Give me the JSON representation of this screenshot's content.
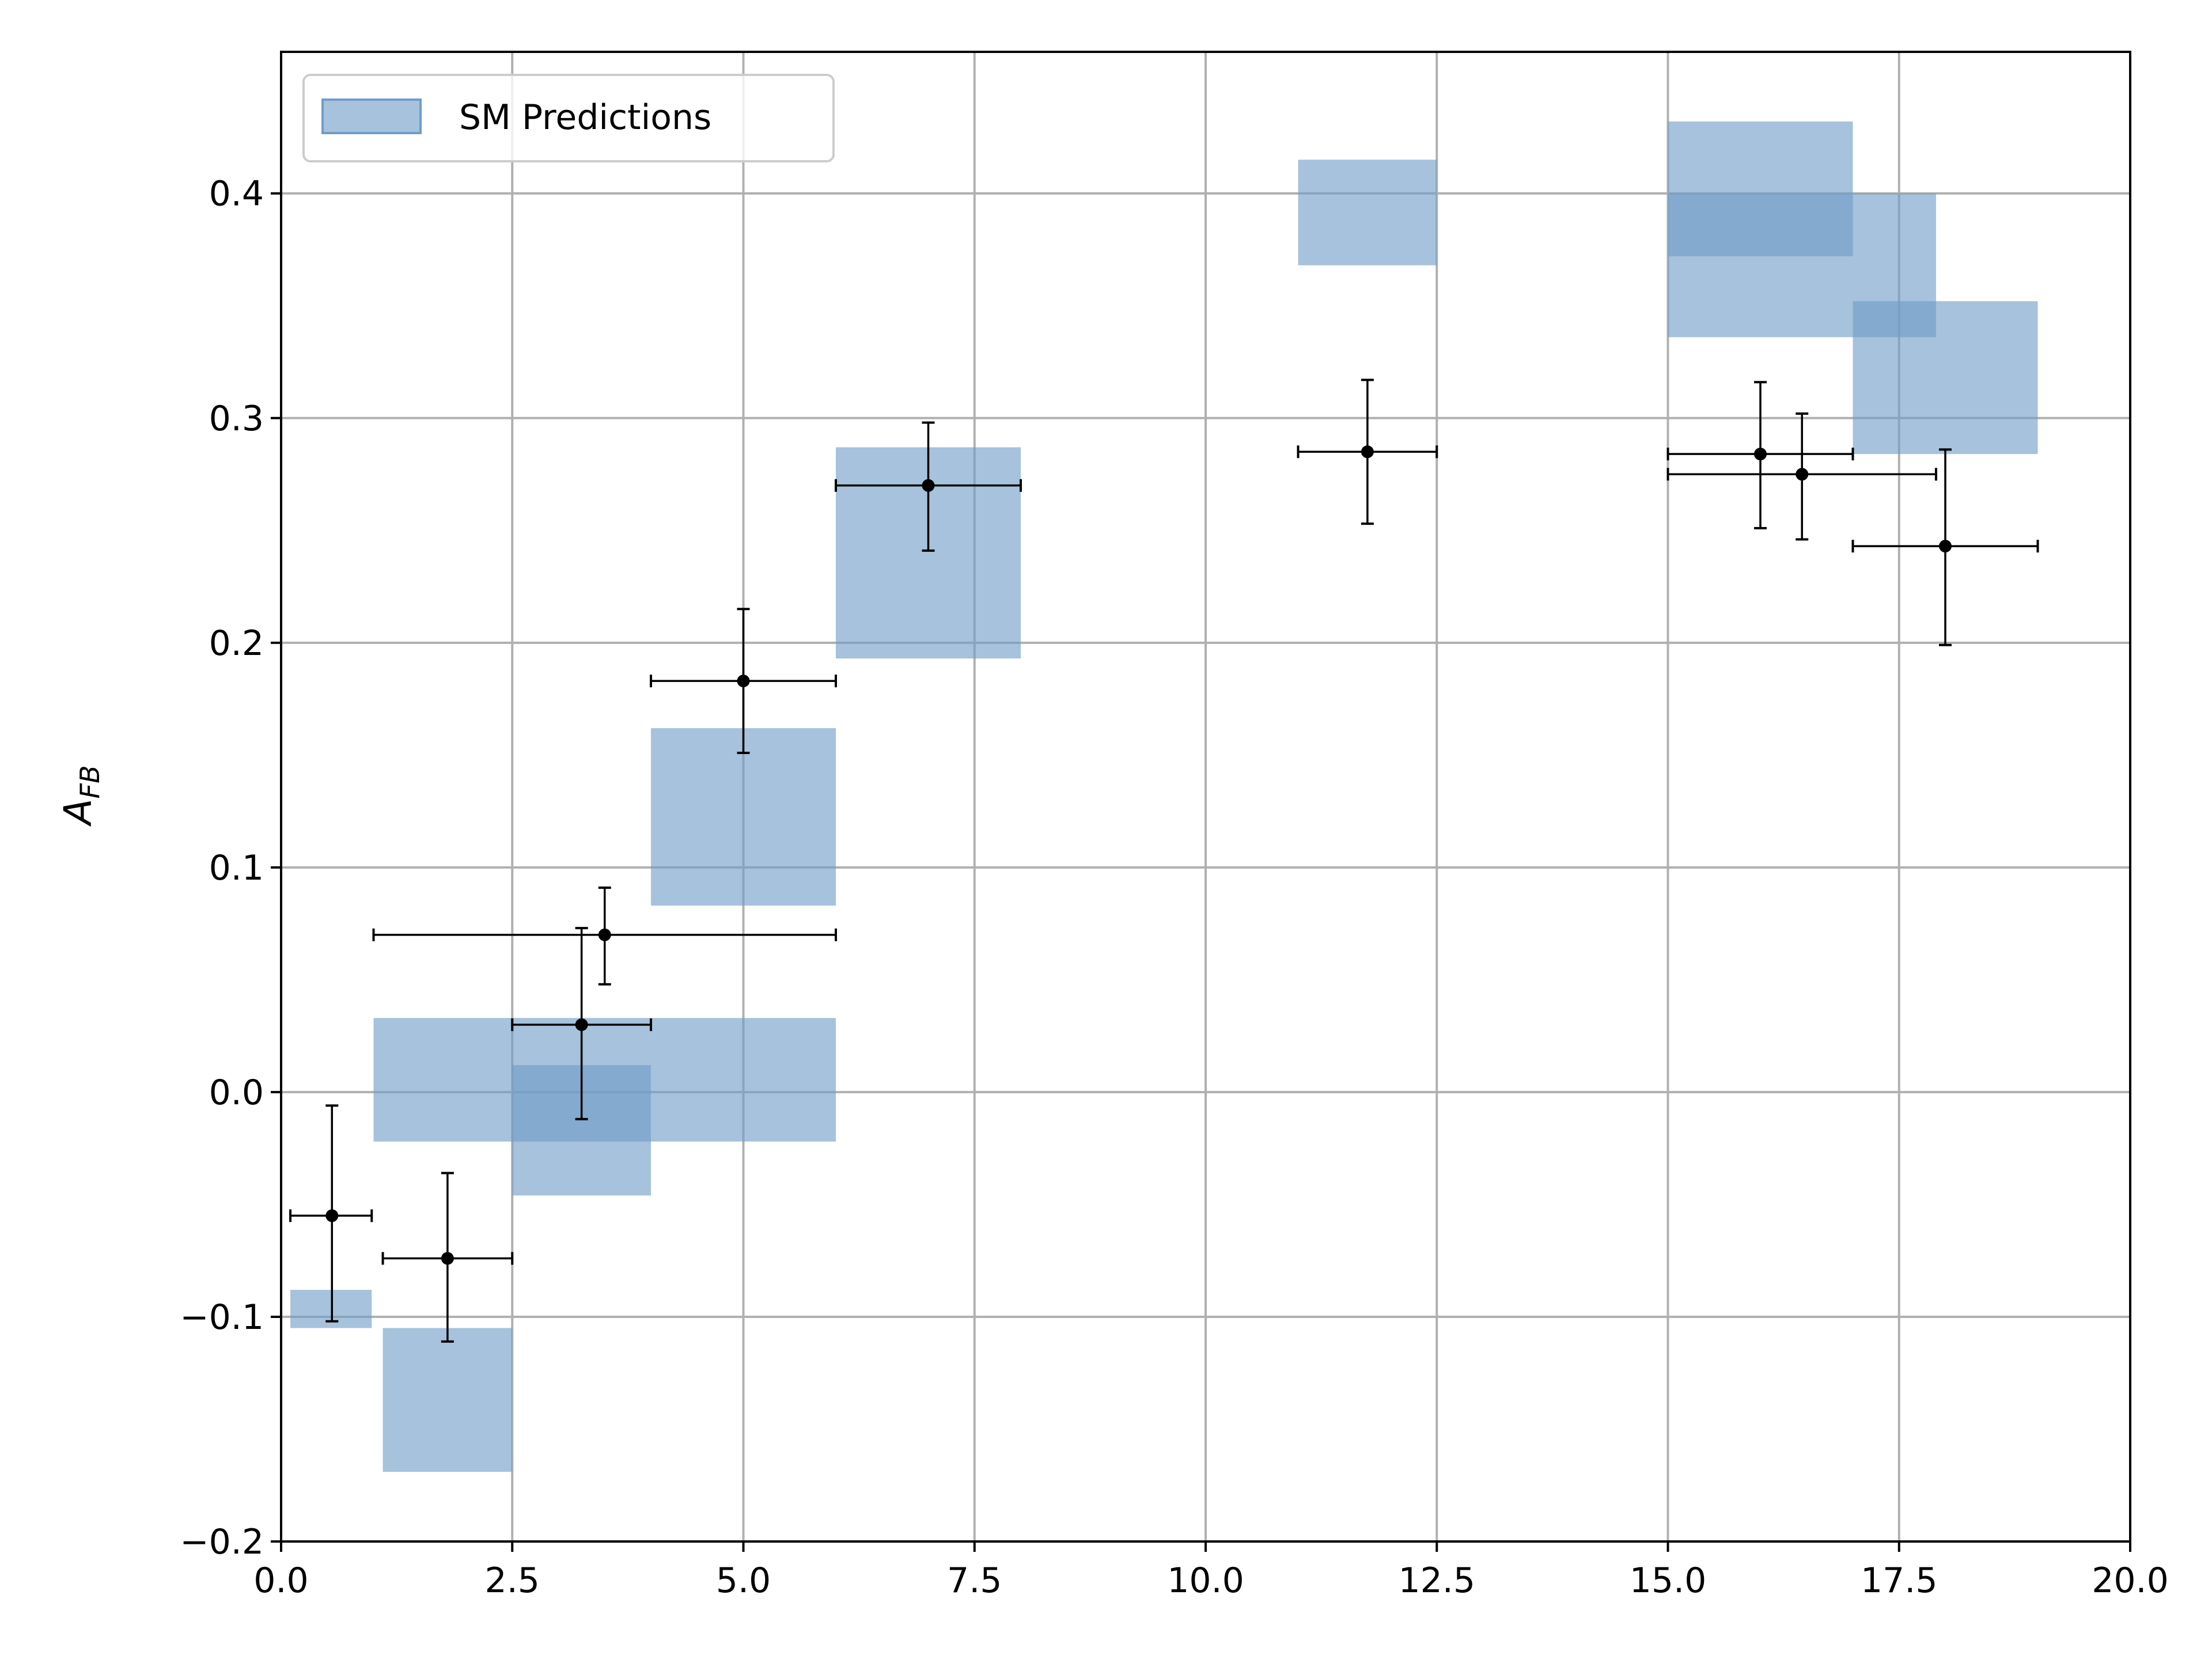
{
  "chart_data": {
    "type": "scatter",
    "title": "",
    "xlabel": "",
    "ylabel": {
      "main": "A",
      "sub": "FB"
    },
    "xlim": [
      0,
      20
    ],
    "ylim": [
      -0.2,
      0.463
    ],
    "xticks": [
      0,
      2.5,
      5,
      7.5,
      10,
      12.5,
      15,
      17.5,
      20
    ],
    "xtick_labels": [
      "0.0",
      "2.5",
      "5.0",
      "7.5",
      "10.0",
      "12.5",
      "15.0",
      "17.5",
      "20.0"
    ],
    "yticks": [
      -0.2,
      -0.1,
      0.0,
      0.1,
      0.2,
      0.3,
      0.4
    ],
    "ytick_labels": [
      "−0.2",
      "−0.1",
      "0.0",
      "0.1",
      "0.2",
      "0.3",
      "0.4"
    ],
    "grid": true,
    "legend": {
      "position": "top-left",
      "entries": [
        "SM Predictions"
      ]
    },
    "colors": {
      "band": "#6f9dc7",
      "points": "#000000",
      "grid": "#b0b0b0"
    },
    "series": [
      {
        "name": "SM Predictions",
        "kind": "band",
        "bins": [
          {
            "x_lo": 0.1,
            "x_hi": 0.98,
            "y_lo": -0.105,
            "y_hi": -0.088
          },
          {
            "x_lo": 1.1,
            "x_hi": 2.5,
            "y_lo": -0.169,
            "y_hi": -0.105
          },
          {
            "x_lo": 1.0,
            "x_hi": 6.0,
            "y_lo": -0.022,
            "y_hi": 0.033
          },
          {
            "x_lo": 2.5,
            "x_hi": 4.0,
            "y_lo": -0.046,
            "y_hi": 0.012
          },
          {
            "x_lo": 4.0,
            "x_hi": 6.0,
            "y_lo": 0.083,
            "y_hi": 0.162
          },
          {
            "x_lo": 6.0,
            "x_hi": 8.0,
            "y_lo": 0.193,
            "y_hi": 0.287
          },
          {
            "x_lo": 11.0,
            "x_hi": 12.5,
            "y_lo": 0.368,
            "y_hi": 0.415
          },
          {
            "x_lo": 15.0,
            "x_hi": 17.0,
            "y_lo": 0.372,
            "y_hi": 0.432
          },
          {
            "x_lo": 15.0,
            "x_hi": 17.9,
            "y_lo": 0.336,
            "y_hi": 0.4
          },
          {
            "x_lo": 17.0,
            "x_hi": 19.0,
            "y_lo": 0.284,
            "y_hi": 0.352
          }
        ]
      },
      {
        "kind": "errorbar",
        "points": [
          {
            "x": 0.55,
            "x_lo": 0.1,
            "x_hi": 0.98,
            "y": -0.055,
            "y_lo": -0.102,
            "y_hi": -0.006
          },
          {
            "x": 1.8,
            "x_lo": 1.1,
            "x_hi": 2.5,
            "y": -0.074,
            "y_lo": -0.111,
            "y_hi": -0.036
          },
          {
            "x": 3.25,
            "x_lo": 2.5,
            "x_hi": 4.0,
            "y": 0.03,
            "y_lo": -0.012,
            "y_hi": 0.073
          },
          {
            "x": 3.5,
            "x_lo": 1.0,
            "x_hi": 6.0,
            "y": 0.07,
            "y_lo": 0.048,
            "y_hi": 0.091
          },
          {
            "x": 5.0,
            "x_lo": 4.0,
            "x_hi": 6.0,
            "y": 0.183,
            "y_lo": 0.151,
            "y_hi": 0.215
          },
          {
            "x": 7.0,
            "x_lo": 6.0,
            "x_hi": 8.0,
            "y": 0.27,
            "y_lo": 0.241,
            "y_hi": 0.298
          },
          {
            "x": 11.75,
            "x_lo": 11.0,
            "x_hi": 12.5,
            "y": 0.285,
            "y_lo": 0.253,
            "y_hi": 0.317
          },
          {
            "x": 16.0,
            "x_lo": 15.0,
            "x_hi": 17.0,
            "y": 0.284,
            "y_lo": 0.251,
            "y_hi": 0.316
          },
          {
            "x": 16.45,
            "x_lo": 15.0,
            "x_hi": 17.9,
            "y": 0.275,
            "y_lo": 0.246,
            "y_hi": 0.302
          },
          {
            "x": 18.0,
            "x_lo": 17.0,
            "x_hi": 19.0,
            "y": 0.243,
            "y_lo": 0.199,
            "y_hi": 0.286
          }
        ]
      }
    ]
  }
}
